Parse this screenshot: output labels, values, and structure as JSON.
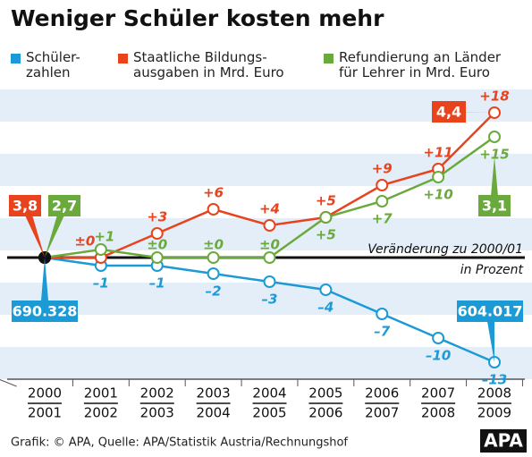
{
  "chart_data": {
    "type": "line",
    "title": "Weniger Schüler kosten mehr",
    "categories": [
      [
        "2000",
        "2001"
      ],
      [
        "2001",
        "2002"
      ],
      [
        "2002",
        "2003"
      ],
      [
        "2003",
        "2004"
      ],
      [
        "2004",
        "2005"
      ],
      [
        "2005",
        "2006"
      ],
      [
        "2006",
        "2007"
      ],
      [
        "2007",
        "2008"
      ],
      [
        "2008",
        "2009"
      ]
    ],
    "series": [
      {
        "name": "Schüler-\nzahlen",
        "color": "#1b9ad6",
        "values": [
          0,
          -1,
          -1,
          -2,
          -3,
          -4,
          -7,
          -10,
          -13
        ],
        "value_labels": [
          null,
          "–1",
          "–1",
          "–2",
          "–3",
          "–4",
          "–7",
          "–10",
          "–13"
        ],
        "start_label": "690.328",
        "end_label": "604.017"
      },
      {
        "name": "Staatliche Bildungs-\nausgaben in Mrd. Euro",
        "color": "#e8431d",
        "values": [
          0,
          0,
          3,
          6,
          4,
          5,
          9,
          11,
          18
        ],
        "value_labels": [
          null,
          "±0",
          "+3",
          "+6",
          "+4",
          "+5",
          "+9",
          "+11",
          "+18"
        ],
        "start_label": "3,8",
        "end_label": "4,4"
      },
      {
        "name": "Refundierung an Länder\nfür Lehrer in Mrd. Euro",
        "color": "#6aaa3d",
        "values": [
          0,
          1,
          0,
          0,
          0,
          5,
          7,
          10,
          15
        ],
        "value_labels": [
          null,
          "+1",
          "±0",
          "±0",
          "±0",
          "+5",
          "+7",
          "+10",
          "+15"
        ],
        "start_label": "2,7",
        "end_label": "3,1"
      }
    ],
    "ylim": [
      -15,
      21
    ],
    "annotations": [
      "Veränderung zu 2000/01",
      "in Prozent"
    ],
    "source": "Grafik: © APA, Quelle: APA/Statistik Austria/Rechnungshof",
    "logo": "APA"
  }
}
